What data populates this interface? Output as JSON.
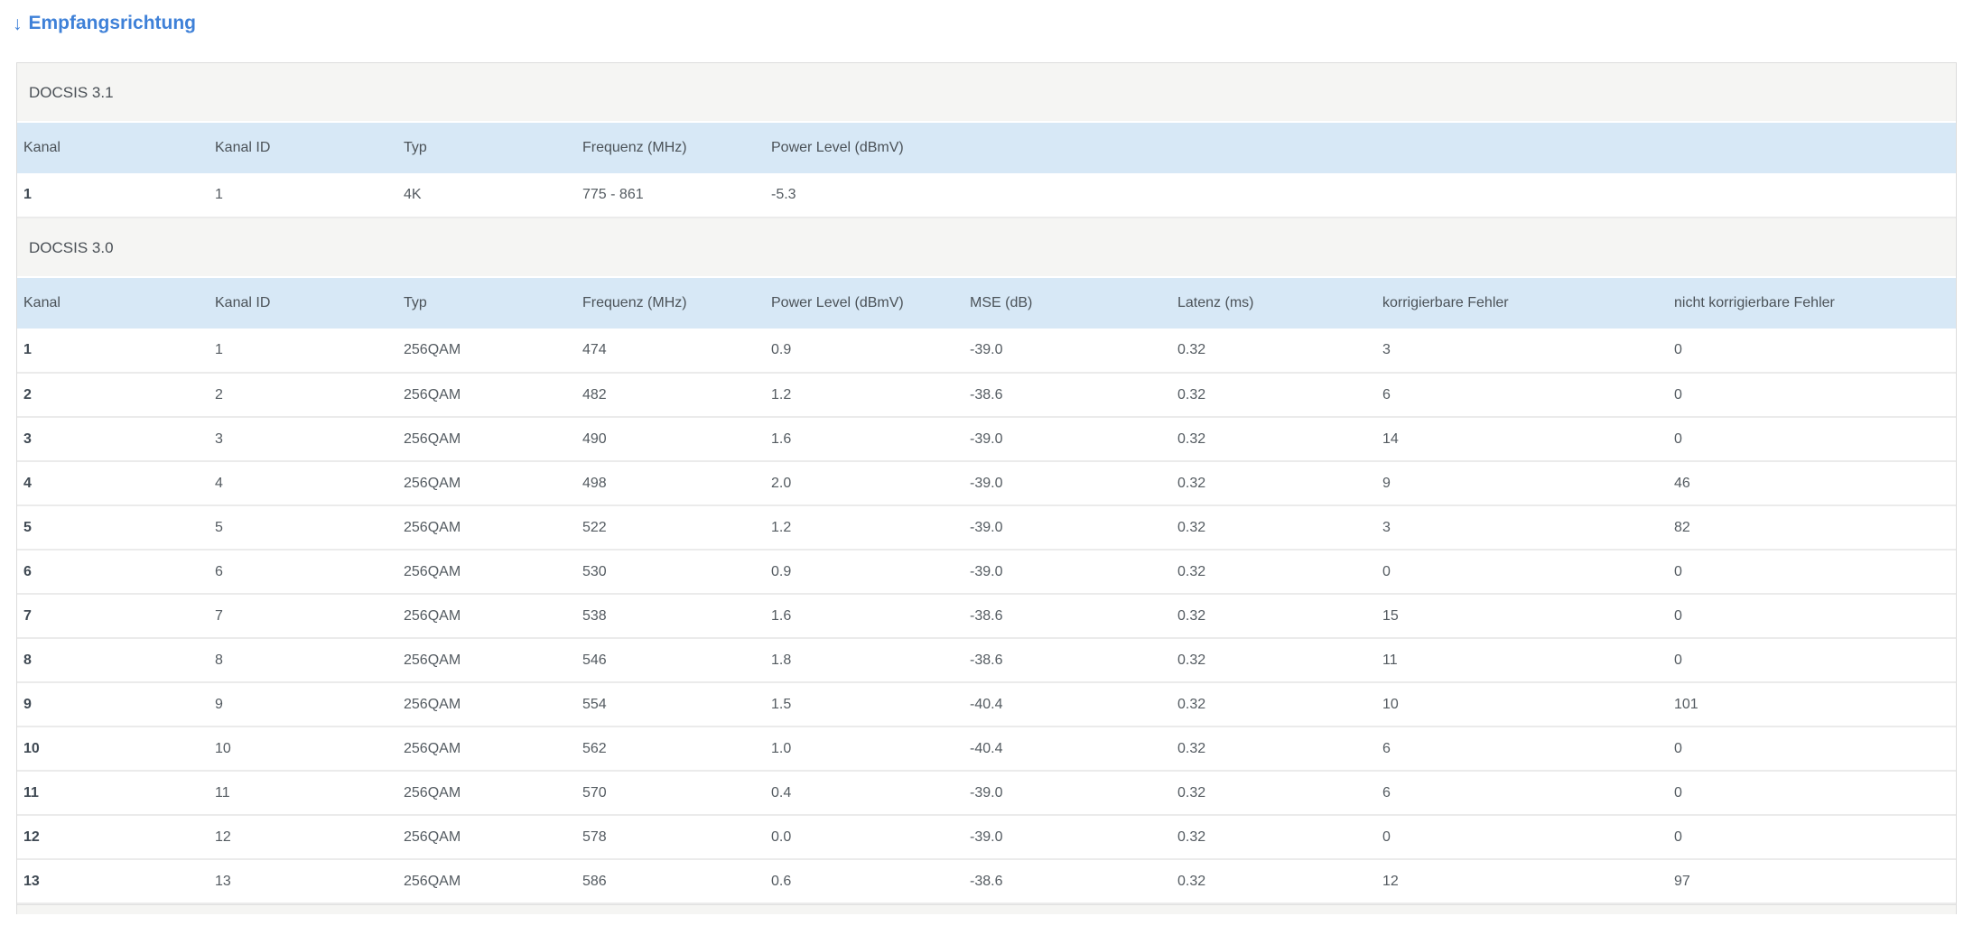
{
  "page": {
    "title": "Empfangsrichtung",
    "title_arrow": "↓",
    "accent_color": "#3f81d8",
    "header_row_color": "#d7e8f6",
    "section_row_color": "#f5f5f3"
  },
  "tables": [
    {
      "section": "DOCSIS 3.1",
      "headers": [
        "Kanal",
        "Kanal ID",
        "Typ",
        "Frequenz (MHz)",
        "Power Level (dBmV)"
      ],
      "rows": [
        [
          "1",
          "1",
          "4K",
          "775 - 861",
          "-5.3"
        ]
      ]
    },
    {
      "section": "DOCSIS 3.0",
      "headers": [
        "Kanal",
        "Kanal ID",
        "Typ",
        "Frequenz (MHz)",
        "Power Level (dBmV)",
        "MSE (dB)",
        "Latenz (ms)",
        "korrigierbare Fehler",
        "nicht korrigierbare Fehler"
      ],
      "rows": [
        [
          "1",
          "1",
          "256QAM",
          "474",
          "0.9",
          "-39.0",
          "0.32",
          "3",
          "0"
        ],
        [
          "2",
          "2",
          "256QAM",
          "482",
          "1.2",
          "-38.6",
          "0.32",
          "6",
          "0"
        ],
        [
          "3",
          "3",
          "256QAM",
          "490",
          "1.6",
          "-39.0",
          "0.32",
          "14",
          "0"
        ],
        [
          "4",
          "4",
          "256QAM",
          "498",
          "2.0",
          "-39.0",
          "0.32",
          "9",
          "46"
        ],
        [
          "5",
          "5",
          "256QAM",
          "522",
          "1.2",
          "-39.0",
          "0.32",
          "3",
          "82"
        ],
        [
          "6",
          "6",
          "256QAM",
          "530",
          "0.9",
          "-39.0",
          "0.32",
          "0",
          "0"
        ],
        [
          "7",
          "7",
          "256QAM",
          "538",
          "1.6",
          "-38.6",
          "0.32",
          "15",
          "0"
        ],
        [
          "8",
          "8",
          "256QAM",
          "546",
          "1.8",
          "-38.6",
          "0.32",
          "11",
          "0"
        ],
        [
          "9",
          "9",
          "256QAM",
          "554",
          "1.5",
          "-40.4",
          "0.32",
          "10",
          "101"
        ],
        [
          "10",
          "10",
          "256QAM",
          "562",
          "1.0",
          "-40.4",
          "0.32",
          "6",
          "0"
        ],
        [
          "11",
          "11",
          "256QAM",
          "570",
          "0.4",
          "-39.0",
          "0.32",
          "6",
          "0"
        ],
        [
          "12",
          "12",
          "256QAM",
          "578",
          "0.0",
          "-39.0",
          "0.32",
          "0",
          "0"
        ],
        [
          "13",
          "13",
          "256QAM",
          "586",
          "0.6",
          "-38.6",
          "0.32",
          "12",
          "97"
        ]
      ]
    }
  ]
}
